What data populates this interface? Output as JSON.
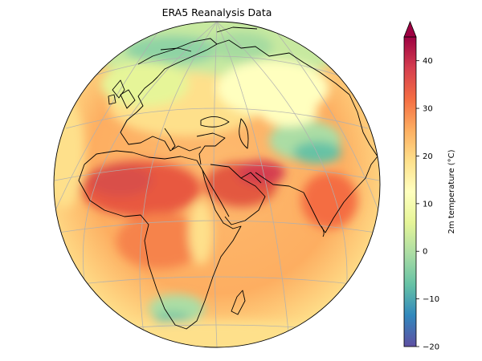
{
  "title": "ERA5 Reanalysis Data",
  "colorbar": {
    "label": "2m temperature (°C)",
    "vmin": -20,
    "vmax": 45,
    "extend": "max",
    "ticks": [
      {
        "value": -20,
        "label": "−20"
      },
      {
        "value": -10,
        "label": "−10"
      },
      {
        "value": 0,
        "label": "0"
      },
      {
        "value": 10,
        "label": "10"
      },
      {
        "value": 20,
        "label": "20"
      },
      {
        "value": 30,
        "label": "30"
      },
      {
        "value": 40,
        "label": "40"
      }
    ],
    "colormap": "Spectral_r",
    "stops": [
      "#5e4fa2",
      "#3288bd",
      "#66c2a5",
      "#abdda4",
      "#e6f598",
      "#ffffbf",
      "#fee08b",
      "#fdae61",
      "#f46d43",
      "#d53e4f",
      "#9e0142"
    ]
  },
  "map": {
    "projection": "orthographic",
    "center_lon": 45,
    "center_lat": 25,
    "gridlines": true,
    "coastlines": true,
    "variable": "2m temperature"
  }
}
